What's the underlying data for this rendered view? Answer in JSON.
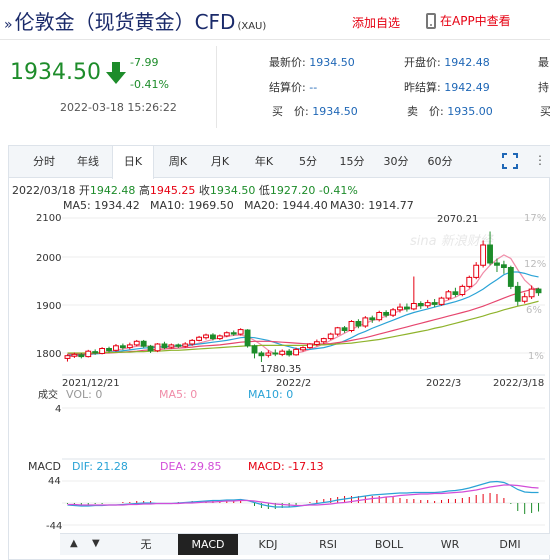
{
  "header": {
    "title": "伦敦金（现货黄金）CFD",
    "code": "(XAU)",
    "add_watch": "添加自选",
    "app_view": "在APP中查看"
  },
  "quote": {
    "price": "1934.50",
    "change": "-7.99",
    "pct": "-0.41%",
    "timestamp": "2022-03-18 15:26:22",
    "fields": [
      {
        "label": "最新价:",
        "value": "1934.50"
      },
      {
        "label": "开盘价:",
        "value": "1942.48"
      },
      {
        "label": "结算价:",
        "value": "--"
      },
      {
        "label": "昨结算:",
        "value": "1942.49"
      },
      {
        "label": "买　价:",
        "value": "1934.50"
      },
      {
        "label": "卖　价:",
        "value": "1935.00"
      }
    ],
    "cut_labels": [
      "最",
      "持",
      "买"
    ]
  },
  "tabs": [
    "分时",
    "年线",
    "日K",
    "周K",
    "月K",
    "年K",
    "5分",
    "15分",
    "30分",
    "60分"
  ],
  "active_tab": "日K",
  "ohlc": {
    "date": "2022/03/18",
    "open_label": "开",
    "open": "1942.48",
    "high_label": "高",
    "high": "1945.25",
    "close_label": "收",
    "close": "1934.50",
    "low_label": "低",
    "low": "1927.20",
    "pct": "-0.41%"
  },
  "ma_legend": [
    {
      "label": "MA5: 1934.42",
      "color": "#f08ca8"
    },
    {
      "label": "MA10: 1969.50",
      "color": "#2aa3d6"
    },
    {
      "label": "MA20: 1944.40",
      "color": "#e6466e"
    },
    {
      "label": "MA30: 1914.77",
      "color": "#8fb32c"
    }
  ],
  "watermark": "sina 新浪财经",
  "chart_data": {
    "type": "candlestick",
    "y_ticks": [
      "2100",
      "2000",
      "1900",
      "1800"
    ],
    "pct_ticks": [
      "17%",
      "12%",
      "6%",
      "1%"
    ],
    "x_labels": [
      "2021/12/21",
      "2022/2",
      "2022/3",
      "2022/3/18"
    ],
    "high_annotation": "2070.21",
    "low_annotation": "1780.35",
    "ylim": [
      1770,
      2110
    ],
    "candles": [
      [
        1788,
        1794,
        1781,
        1797
      ],
      [
        1793,
        1797,
        1789,
        1801
      ],
      [
        1796,
        1792,
        1788,
        1800
      ],
      [
        1792,
        1804,
        1790,
        1807
      ],
      [
        1803,
        1800,
        1796,
        1808
      ],
      [
        1799,
        1810,
        1797,
        1813
      ],
      [
        1810,
        1805,
        1801,
        1814
      ],
      [
        1806,
        1816,
        1803,
        1820
      ],
      [
        1816,
        1812,
        1807,
        1821
      ],
      [
        1812,
        1818,
        1808,
        1823
      ],
      [
        1818,
        1826,
        1815,
        1829
      ],
      [
        1826,
        1815,
        1812,
        1829
      ],
      [
        1815,
        1805,
        1800,
        1818
      ],
      [
        1805,
        1820,
        1802,
        1822
      ],
      [
        1820,
        1812,
        1808,
        1825
      ],
      [
        1813,
        1818,
        1810,
        1821
      ],
      [
        1818,
        1815,
        1811,
        1821
      ],
      [
        1815,
        1820,
        1812,
        1824
      ],
      [
        1820,
        1828,
        1816,
        1831
      ],
      [
        1828,
        1835,
        1826,
        1838
      ],
      [
        1834,
        1840,
        1830,
        1843
      ],
      [
        1840,
        1832,
        1828,
        1844
      ],
      [
        1832,
        1838,
        1829,
        1841
      ],
      [
        1838,
        1845,
        1835,
        1848
      ],
      [
        1845,
        1842,
        1838,
        1850
      ],
      [
        1842,
        1852,
        1839,
        1855
      ],
      [
        1851,
        1816,
        1812,
        1853
      ],
      [
        1816,
        1800,
        1788,
        1819
      ],
      [
        1800,
        1794,
        1780,
        1804
      ],
      [
        1795,
        1800,
        1790,
        1806
      ],
      [
        1800,
        1798,
        1793,
        1808
      ],
      [
        1797,
        1804,
        1793,
        1808
      ],
      [
        1804,
        1796,
        1792,
        1809
      ],
      [
        1796,
        1808,
        1794,
        1812
      ],
      [
        1807,
        1812,
        1803,
        1815
      ],
      [
        1812,
        1820,
        1809,
        1822
      ],
      [
        1819,
        1825,
        1815,
        1830
      ],
      [
        1825,
        1832,
        1820,
        1834
      ],
      [
        1832,
        1842,
        1829,
        1845
      ],
      [
        1842,
        1856,
        1838,
        1858
      ],
      [
        1856,
        1850,
        1845,
        1860
      ],
      [
        1850,
        1870,
        1846,
        1873
      ],
      [
        1870,
        1860,
        1855,
        1875
      ],
      [
        1860,
        1878,
        1856,
        1882
      ],
      [
        1878,
        1874,
        1867,
        1883
      ],
      [
        1874,
        1890,
        1870,
        1894
      ],
      [
        1890,
        1884,
        1879,
        1895
      ],
      [
        1884,
        1896,
        1880,
        1900
      ],
      [
        1896,
        1902,
        1890,
        1910
      ],
      [
        1902,
        1898,
        1892,
        1910
      ],
      [
        1898,
        1910,
        1895,
        1970
      ],
      [
        1910,
        1905,
        1898,
        1915
      ],
      [
        1905,
        1912,
        1900,
        1918
      ],
      [
        1912,
        1908,
        1902,
        1920
      ],
      [
        1908,
        1922,
        1905,
        1925
      ],
      [
        1922,
        1936,
        1918,
        1940
      ],
      [
        1936,
        1930,
        1925,
        1945
      ],
      [
        1930,
        1948,
        1926,
        1952
      ],
      [
        1948,
        1968,
        1944,
        1972
      ],
      [
        1968,
        1995,
        1964,
        2002
      ],
      [
        1995,
        2040,
        1990,
        2050
      ],
      [
        2040,
        2000,
        1995,
        2070
      ],
      [
        2000,
        1995,
        1980,
        2010
      ],
      [
        1996,
        1990,
        1976,
        2005
      ],
      [
        1990,
        1948,
        1942,
        1994
      ],
      [
        1948,
        1915,
        1905,
        1958
      ],
      [
        1915,
        1925,
        1910,
        1934
      ],
      [
        1925,
        1942,
        1920,
        1950
      ],
      [
        1942,
        1934,
        1927,
        1945
      ]
    ],
    "ma_lines": {
      "MA5": [
        1792,
        1793,
        1794,
        1796,
        1799,
        1801,
        1803,
        1806,
        1809,
        1812,
        1815,
        1816,
        1815,
        1814,
        1813,
        1814,
        1815,
        1816,
        1818,
        1822,
        1826,
        1830,
        1834,
        1837,
        1839,
        1840,
        1836,
        1828,
        1818,
        1806,
        1798,
        1798,
        1798,
        1800,
        1803,
        1808,
        1814,
        1820,
        1828,
        1836,
        1844,
        1852,
        1860,
        1866,
        1872,
        1876,
        1882,
        1888,
        1894,
        1898,
        1902,
        1906,
        1908,
        1910,
        1913,
        1918,
        1924,
        1932,
        1942,
        1955,
        1978,
        1995,
        2008,
        2018,
        2010,
        1985,
        1962,
        1948,
        1934
      ],
      "MA10": [
        1795,
        1795,
        1796,
        1797,
        1798,
        1799,
        1801,
        1803,
        1805,
        1807,
        1809,
        1811,
        1812,
        1813,
        1814,
        1815,
        1816,
        1817,
        1818,
        1820,
        1822,
        1824,
        1826,
        1828,
        1831,
        1834,
        1835,
        1834,
        1831,
        1828,
        1823,
        1818,
        1814,
        1810,
        1808,
        1808,
        1810,
        1812,
        1816,
        1821,
        1827,
        1834,
        1842,
        1848,
        1855,
        1861,
        1867,
        1873,
        1879,
        1885,
        1890,
        1894,
        1898,
        1902,
        1906,
        1910,
        1914,
        1919,
        1925,
        1933,
        1942,
        1953,
        1963,
        1974,
        1980,
        1980,
        1977,
        1972,
        1969
      ],
      "MA20": [
        1798,
        1798,
        1798,
        1798,
        1799,
        1800,
        1800,
        1801,
        1802,
        1803,
        1804,
        1806,
        1807,
        1808,
        1809,
        1810,
        1811,
        1812,
        1813,
        1815,
        1816,
        1817,
        1818,
        1820,
        1822,
        1824,
        1825,
        1826,
        1826,
        1826,
        1825,
        1824,
        1823,
        1822,
        1821,
        1820,
        1820,
        1820,
        1821,
        1823,
        1825,
        1828,
        1831,
        1834,
        1838,
        1842,
        1846,
        1850,
        1854,
        1858,
        1862,
        1866,
        1870,
        1874,
        1878,
        1882,
        1886,
        1890,
        1894,
        1899,
        1904,
        1910,
        1916,
        1922,
        1928,
        1933,
        1937,
        1941,
        1944
      ],
      "MA30": [
        1800,
        1800,
        1800,
        1800,
        1800,
        1801,
        1801,
        1801,
        1802,
        1802,
        1803,
        1803,
        1804,
        1804,
        1805,
        1806,
        1806,
        1807,
        1808,
        1809,
        1810,
        1811,
        1812,
        1813,
        1814,
        1815,
        1816,
        1816,
        1817,
        1817,
        1817,
        1817,
        1817,
        1817,
        1817,
        1817,
        1818,
        1818,
        1819,
        1820,
        1821,
        1822,
        1824,
        1826,
        1828,
        1830,
        1833,
        1836,
        1839,
        1842,
        1845,
        1848,
        1851,
        1855,
        1858,
        1862,
        1866,
        1870,
        1874,
        1878,
        1882,
        1887,
        1891,
        1896,
        1900,
        1904,
        1907,
        1911,
        1915
      ]
    }
  },
  "volume": {
    "title": "成交",
    "vol_label": "VOL: 0",
    "ma5_label": "MA5: 0",
    "ma10_label": "MA10: 0",
    "y_tick": "4"
  },
  "macd": {
    "title": "MACD",
    "dif_label": "DIF: 21.28",
    "dea_label": "DEA: 29.85",
    "macd_label": "MACD: -17.13",
    "y_ticks": [
      "44",
      "-44"
    ],
    "ylim": [
      -44,
      44
    ],
    "dif": [
      -4,
      -5,
      -6,
      -6,
      -5,
      -5,
      -4,
      -4,
      -3,
      -2,
      -1,
      0,
      0,
      -1,
      -1,
      -1,
      0,
      1,
      2,
      3,
      4,
      5,
      5,
      6,
      6,
      7,
      5,
      1,
      -3,
      -6,
      -8,
      -8,
      -8,
      -7,
      -5,
      -3,
      -1,
      1,
      3,
      6,
      8,
      10,
      12,
      14,
      16,
      17,
      18,
      19,
      20,
      20,
      21,
      21,
      21,
      21,
      22,
      24,
      25,
      27,
      30,
      34,
      38,
      42,
      43,
      41,
      35,
      27,
      22,
      21,
      21
    ],
    "dea": [
      -3,
      -3,
      -4,
      -4,
      -4,
      -4,
      -4,
      -4,
      -4,
      -3,
      -3,
      -2,
      -2,
      -1,
      -1,
      -1,
      -1,
      0,
      0,
      1,
      2,
      2,
      3,
      4,
      4,
      5,
      5,
      4,
      2,
      0,
      -2,
      -3,
      -4,
      -5,
      -5,
      -4,
      -4,
      -3,
      -2,
      0,
      1,
      3,
      5,
      7,
      9,
      10,
      12,
      13,
      15,
      16,
      17,
      18,
      18,
      19,
      19,
      20,
      21,
      22,
      24,
      26,
      29,
      32,
      34,
      36,
      36,
      35,
      33,
      31,
      30
    ],
    "hist": [
      -2,
      -4,
      -4,
      -4,
      -2,
      -2,
      0,
      0,
      2,
      2,
      4,
      4,
      4,
      0,
      0,
      0,
      2,
      2,
      4,
      4,
      4,
      6,
      4,
      4,
      4,
      4,
      0,
      -6,
      -10,
      -12,
      -12,
      -10,
      -8,
      -4,
      0,
      2,
      6,
      8,
      10,
      12,
      14,
      14,
      14,
      14,
      14,
      14,
      12,
      12,
      10,
      8,
      8,
      6,
      6,
      4,
      6,
      8,
      8,
      10,
      12,
      16,
      18,
      20,
      18,
      10,
      -2,
      -16,
      -22,
      -20,
      -17
    ]
  },
  "bottom_tabs": [
    "无",
    "MACD",
    "KDJ",
    "RSI",
    "BOLL",
    "WR",
    "DMI"
  ],
  "active_bottom_tab": "MACD",
  "colors": {
    "up": "#e60012",
    "down": "#1d8c2a",
    "accent": "#1f67b6"
  }
}
